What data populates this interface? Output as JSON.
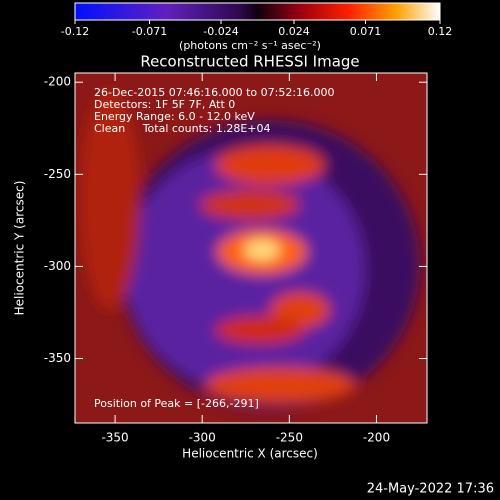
{
  "chart_data": {
    "type": "image",
    "title": "Reconstructed RHESSI Image",
    "x_label": "Heliocentric X (arcsec)",
    "y_label": "Heliocentric Y (arcsec)",
    "xlim": [
      -373,
      -171
    ],
    "ylim": [
      -385,
      -195
    ],
    "xticks": [
      -350,
      -300,
      -250,
      -200
    ],
    "yticks": [
      -350,
      -300,
      -250,
      -200
    ],
    "colorbar": {
      "lim": [
        -0.12,
        0.12
      ],
      "ticks": [
        -0.12,
        -0.071,
        -0.024,
        0.024,
        0.071,
        0.12
      ],
      "units": "(photons cm⁻² s⁻¹ asec⁻²)"
    },
    "annotations": [
      "26-Dec-2015 07:46:16.000 to 07:52:16.000",
      "Detectors: 1F 5F 7F, Att 0",
      "Energy Range: 6.0 - 12.0 keV",
      "Clean     Total counts: 1.28E+04"
    ],
    "peak_label": "Position of Peak = [-266,-291]",
    "timestamp": "24-May-2022 17:36"
  }
}
